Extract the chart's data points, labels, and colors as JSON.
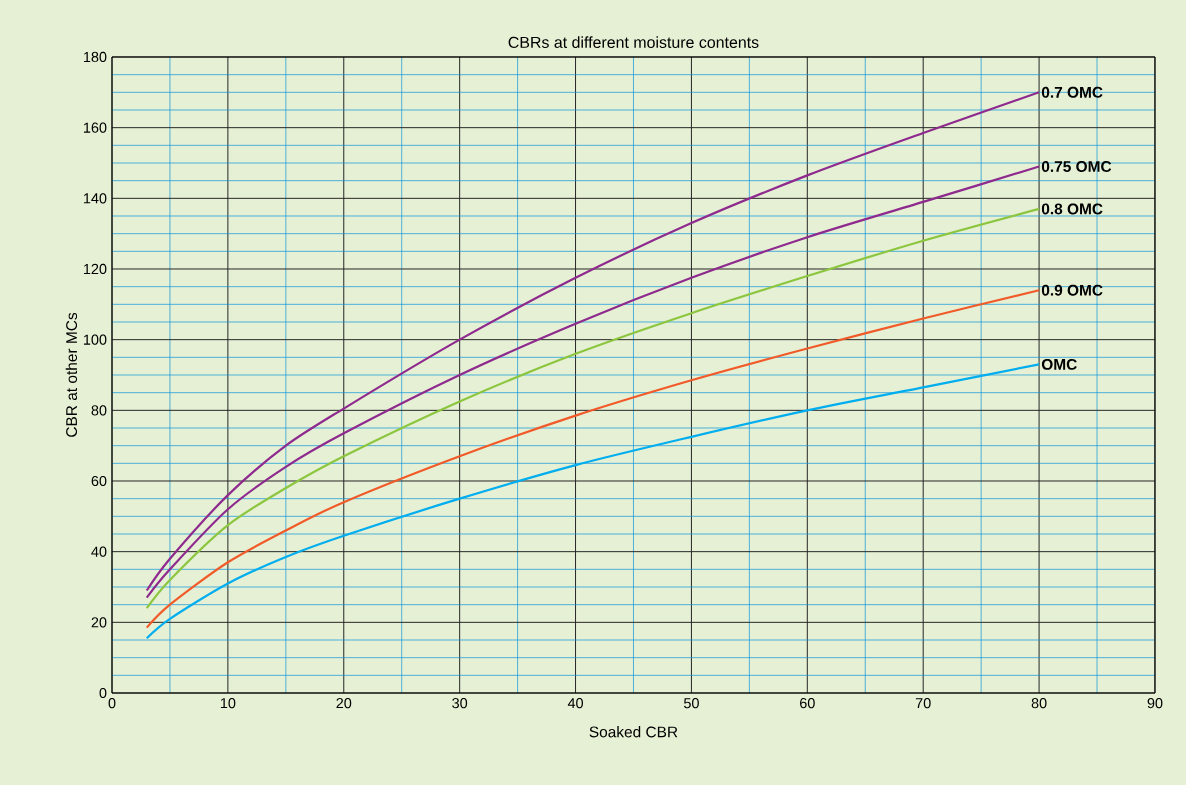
{
  "chart_data": {
    "type": "line",
    "title": "CBRs at different moisture contents",
    "xlabel": "Soaked CBR",
    "ylabel": "CBR at other MCs",
    "x": [
      3,
      5,
      10,
      15,
      20,
      30,
      40,
      50,
      60,
      70,
      80
    ],
    "series": [
      {
        "name": "0.7 OMC",
        "color": "#8e2a8e",
        "values": [
          29,
          38,
          56,
          70,
          80.5,
          100,
          117.5,
          133,
          146.5,
          158.5,
          170
        ]
      },
      {
        "name": "0.75 OMC",
        "color": "#8e2a8e",
        "values": [
          27,
          35,
          52,
          64,
          73.5,
          90,
          104.5,
          117.5,
          129,
          139,
          149
        ]
      },
      {
        "name": "0.8 OMC",
        "color": "#8cc63f",
        "values": [
          24,
          32,
          47.5,
          58,
          67,
          82.5,
          96,
          107.5,
          118,
          128,
          137
        ]
      },
      {
        "name": "0.9 OMC",
        "color": "#f15a29",
        "values": [
          18.5,
          25,
          37,
          46,
          54,
          67,
          78.5,
          88.5,
          97.5,
          106,
          114
        ]
      },
      {
        "name": "OMC",
        "color": "#00aeef",
        "values": [
          15.5,
          21,
          31,
          38.5,
          44.5,
          55,
          64.5,
          72.5,
          80,
          86.5,
          93
        ]
      }
    ],
    "xlim": [
      0,
      90
    ],
    "ylim": [
      0,
      180
    ],
    "xticks": [
      0,
      {
        "value": 5,
        "label": null
      },
      10,
      {
        "value": 15,
        "label": null
      },
      20,
      {
        "value": 25,
        "label": null
      },
      30,
      {
        "value": 35,
        "label": null
      },
      40,
      {
        "value": 45,
        "label": null
      },
      50,
      {
        "value": 55,
        "label": null
      },
      60,
      {
        "value": 65,
        "label": null
      },
      70,
      {
        "value": 75,
        "label": null
      },
      80,
      {
        "value": 85,
        "label": null
      },
      90
    ],
    "yticks": [
      0,
      {
        "value": 5,
        "label": null
      },
      {
        "value": 10,
        "label": null
      },
      {
        "value": 15,
        "label": null
      },
      20,
      {
        "value": 25,
        "label": null
      },
      {
        "value": 30,
        "label": null
      },
      {
        "value": 35,
        "label": null
      },
      40,
      {
        "value": 45,
        "label": null
      },
      {
        "value": 50,
        "label": null
      },
      {
        "value": 55,
        "label": null
      },
      60,
      {
        "value": 65,
        "label": null
      },
      {
        "value": 70,
        "label": null
      },
      {
        "value": 75,
        "label": null
      },
      80,
      {
        "value": 85,
        "label": null
      },
      {
        "value": 90,
        "label": null
      },
      {
        "value": 95,
        "label": null
      },
      100,
      {
        "value": 105,
        "label": null
      },
      {
        "value": 110,
        "label": null
      },
      {
        "value": 115,
        "label": null
      },
      120,
      {
        "value": 125,
        "label": null
      },
      {
        "value": 130,
        "label": null
      },
      {
        "value": 135,
        "label": null
      },
      140,
      {
        "value": 145,
        "label": null
      },
      {
        "value": 150,
        "label": null
      },
      {
        "value": 155,
        "label": null
      },
      160,
      {
        "value": 165,
        "label": null
      },
      {
        "value": 170,
        "label": null
      },
      {
        "value": 175,
        "label": null
      },
      180
    ],
    "grid": true,
    "legend": false,
    "marker": "none",
    "line_style": "solid"
  }
}
